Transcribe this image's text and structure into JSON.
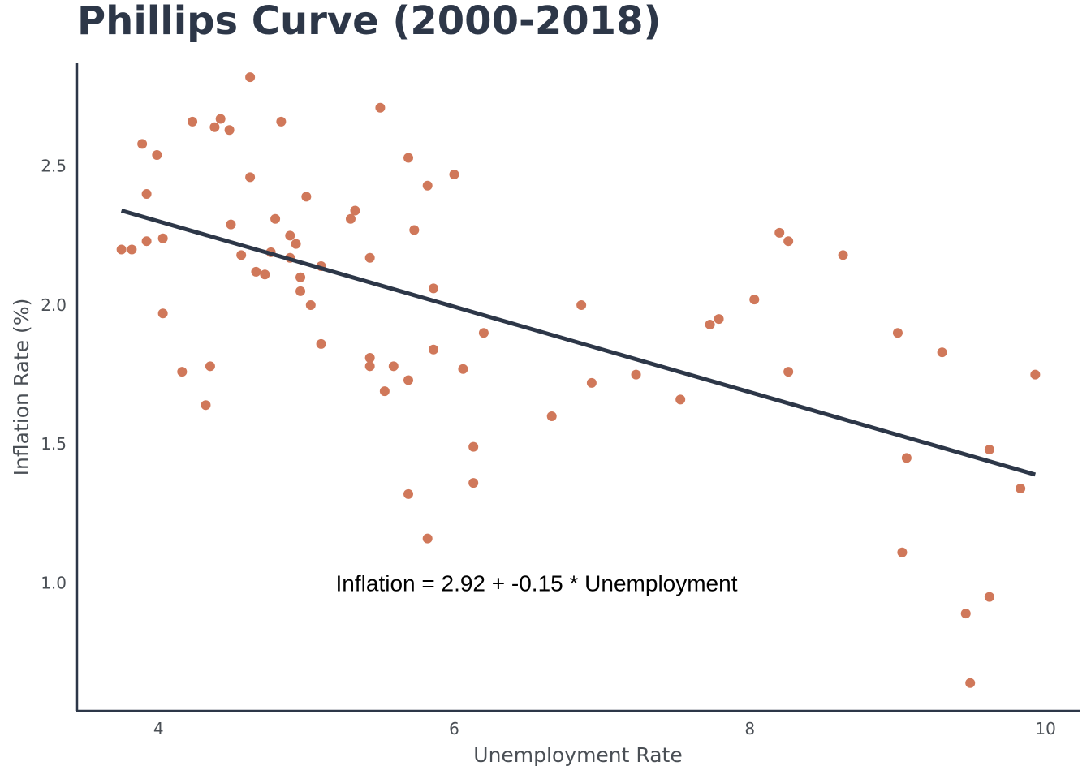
{
  "chart_data": {
    "type": "scatter",
    "title": "Phillips Curve (2000-2018)",
    "xlabel": "Unemployment Rate",
    "ylabel": "Inflation Rate (%)",
    "xlim": [
      3.45,
      10.23
    ],
    "ylim": [
      0.54,
      2.87
    ],
    "x_ticks": [
      4,
      6,
      8,
      10
    ],
    "y_ticks": [
      1.0,
      1.5,
      2.0,
      2.5
    ],
    "x_tick_labels": [
      "4",
      "6",
      "8",
      "10"
    ],
    "y_tick_labels": [
      "1.0",
      "1.5",
      "2.0",
      "2.5"
    ],
    "grid": false,
    "colors": {
      "points": "#d0785a",
      "line": "#2d3748",
      "axis": "#2d3748"
    },
    "points": [
      [
        3.75,
        2.2
      ],
      [
        3.82,
        2.2
      ],
      [
        3.89,
        2.58
      ],
      [
        3.92,
        2.4
      ],
      [
        3.92,
        2.23
      ],
      [
        3.99,
        2.54
      ],
      [
        4.03,
        1.97
      ],
      [
        4.03,
        2.24
      ],
      [
        4.16,
        1.76
      ],
      [
        4.23,
        2.66
      ],
      [
        4.32,
        1.64
      ],
      [
        4.35,
        1.78
      ],
      [
        4.38,
        2.64
      ],
      [
        4.42,
        2.67
      ],
      [
        4.48,
        2.63
      ],
      [
        4.49,
        2.29
      ],
      [
        4.56,
        2.18
      ],
      [
        4.62,
        2.46
      ],
      [
        4.62,
        2.82
      ],
      [
        4.66,
        2.12
      ],
      [
        4.72,
        2.11
      ],
      [
        4.76,
        2.19
      ],
      [
        4.79,
        2.31
      ],
      [
        4.83,
        2.66
      ],
      [
        4.89,
        2.25
      ],
      [
        4.89,
        2.17
      ],
      [
        4.93,
        2.22
      ],
      [
        4.96,
        2.1
      ],
      [
        4.96,
        2.05
      ],
      [
        5.0,
        2.39
      ],
      [
        5.03,
        2.0
      ],
      [
        5.1,
        2.14
      ],
      [
        5.1,
        1.86
      ],
      [
        5.3,
        2.31
      ],
      [
        5.33,
        2.34
      ],
      [
        5.43,
        2.17
      ],
      [
        5.43,
        1.81
      ],
      [
        5.43,
        1.78
      ],
      [
        5.5,
        2.71
      ],
      [
        5.53,
        1.69
      ],
      [
        5.59,
        1.78
      ],
      [
        5.69,
        1.73
      ],
      [
        5.69,
        2.53
      ],
      [
        5.69,
        1.32
      ],
      [
        5.73,
        2.27
      ],
      [
        5.82,
        2.43
      ],
      [
        5.82,
        1.16
      ],
      [
        5.86,
        2.06
      ],
      [
        5.86,
        1.84
      ],
      [
        6.0,
        2.47
      ],
      [
        6.06,
        1.77
      ],
      [
        6.13,
        1.49
      ],
      [
        6.13,
        1.36
      ],
      [
        6.2,
        1.9
      ],
      [
        6.66,
        1.6
      ],
      [
        6.86,
        2.0
      ],
      [
        6.93,
        1.72
      ],
      [
        7.23,
        1.75
      ],
      [
        7.53,
        1.66
      ],
      [
        7.73,
        1.93
      ],
      [
        7.79,
        1.95
      ],
      [
        8.03,
        2.02
      ],
      [
        8.2,
        2.26
      ],
      [
        8.26,
        2.23
      ],
      [
        8.26,
        1.76
      ],
      [
        8.63,
        2.18
      ],
      [
        9.0,
        1.9
      ],
      [
        9.03,
        1.11
      ],
      [
        9.06,
        1.45
      ],
      [
        9.3,
        1.83
      ],
      [
        9.46,
        0.89
      ],
      [
        9.49,
        0.64
      ],
      [
        9.62,
        1.48
      ],
      [
        9.62,
        0.95
      ],
      [
        9.83,
        1.34
      ],
      [
        9.93,
        1.75
      ]
    ],
    "fit_line": {
      "x": [
        3.75,
        9.93
      ],
      "y": [
        2.34,
        1.39
      ]
    },
    "annotation": {
      "text": "Inflation = 2.92 + -0.15 * Unemployment",
      "x": 5.15,
      "y": 1.0
    }
  }
}
